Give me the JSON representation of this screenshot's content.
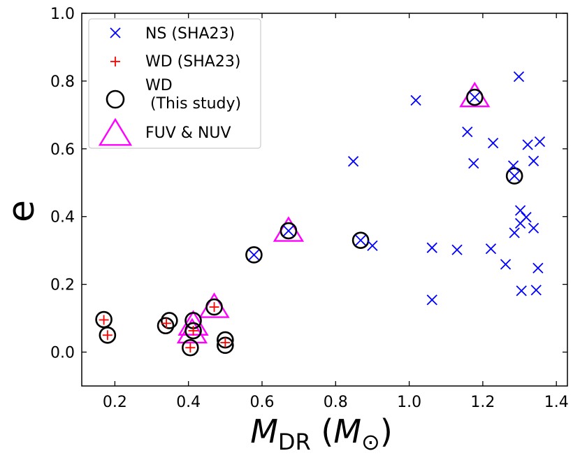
{
  "chart_data": {
    "type": "scatter",
    "xlabel_main": "M",
    "xlabel_sub": "DR",
    "xlabel_unit_main": "M",
    "xlabel_unit_sub": "⊙",
    "ylabel": "e",
    "xlim": [
      0.11,
      1.43
    ],
    "ylim": [
      -0.1,
      1.0
    ],
    "xticks": [
      0.2,
      0.4,
      0.6,
      0.8,
      1.0,
      1.2,
      1.4
    ],
    "xtick_labels": [
      "0.2",
      "0.4",
      "0.6",
      "0.8",
      "1.0",
      "1.2",
      "1.4"
    ],
    "yticks": [
      0.0,
      0.2,
      0.4,
      0.6,
      0.8,
      1.0
    ],
    "ytick_labels": [
      "0.0",
      "0.2",
      "0.4",
      "0.6",
      "0.8",
      "1.0"
    ],
    "legend_position": "top-left",
    "colors": {
      "ns": "#0000ff",
      "wd": "#ff0000",
      "this_study": "#000000",
      "uv": "#ff00ff"
    },
    "series": [
      {
        "name": "NS (SHA23)",
        "marker": "x",
        "points": [
          [
            0.848,
            0.563
          ],
          [
            0.9,
            0.314
          ],
          [
            1.018,
            0.743
          ],
          [
            1.062,
            0.308
          ],
          [
            1.062,
            0.154
          ],
          [
            1.13,
            0.302
          ],
          [
            1.158,
            0.65
          ],
          [
            1.175,
            0.557
          ],
          [
            1.178,
            0.752
          ],
          [
            1.222,
            0.305
          ],
          [
            1.228,
            0.617
          ],
          [
            1.262,
            0.259
          ],
          [
            1.283,
            0.55
          ],
          [
            1.286,
            0.352
          ],
          [
            1.286,
            0.52
          ],
          [
            1.298,
            0.813
          ],
          [
            1.302,
            0.418
          ],
          [
            1.302,
            0.38
          ],
          [
            1.305,
            0.181
          ],
          [
            1.318,
            0.398
          ],
          [
            1.322,
            0.612
          ],
          [
            1.338,
            0.564
          ],
          [
            1.338,
            0.366
          ],
          [
            1.345,
            0.183
          ],
          [
            1.35,
            0.248
          ],
          [
            1.355,
            0.621
          ],
          [
            0.578,
            0.287
          ],
          [
            0.672,
            0.358
          ],
          [
            0.868,
            0.33
          ]
        ]
      },
      {
        "name": "WD (SHA23)",
        "marker": "+",
        "points": [
          [
            0.17,
            0.095
          ],
          [
            0.18,
            0.05
          ],
          [
            0.34,
            0.085
          ],
          [
            0.405,
            0.013
          ],
          [
            0.413,
            0.063
          ],
          [
            0.47,
            0.133
          ],
          [
            0.5,
            0.028
          ]
        ]
      },
      {
        "name": "WD\n (This study)",
        "marker": "o",
        "points": [
          [
            0.17,
            0.096
          ],
          [
            0.18,
            0.05
          ],
          [
            0.338,
            0.078
          ],
          [
            0.348,
            0.093
          ],
          [
            0.405,
            0.013
          ],
          [
            0.413,
            0.063
          ],
          [
            0.413,
            0.093
          ],
          [
            0.47,
            0.133
          ],
          [
            0.5,
            0.036
          ],
          [
            0.5,
            0.02
          ],
          [
            0.578,
            0.287
          ],
          [
            0.672,
            0.358
          ],
          [
            0.868,
            0.33
          ],
          [
            1.178,
            0.752
          ],
          [
            1.286,
            0.52
          ]
        ]
      },
      {
        "name": "FUV & NUV",
        "marker": "^",
        "points": [
          [
            0.41,
            0.055
          ],
          [
            0.413,
            0.078
          ],
          [
            0.47,
            0.13
          ],
          [
            0.672,
            0.355
          ],
          [
            1.178,
            0.752
          ]
        ]
      }
    ]
  }
}
